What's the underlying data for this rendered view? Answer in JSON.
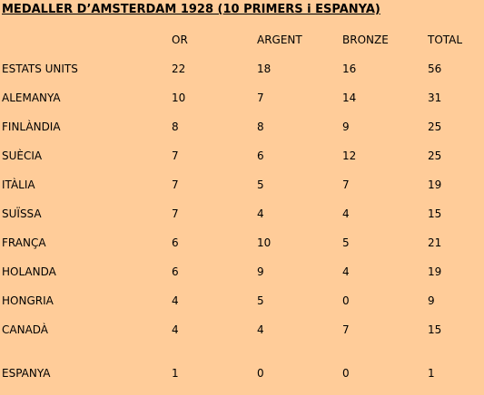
{
  "title": "MEDALLER D’AMSTERDAM 1928 (10 PRIMERS i ESPANYA)",
  "header": {
    "country": "",
    "gold": "OR",
    "silver": "ARGENT",
    "bronze": "BRONZE",
    "total": "TOTAL"
  },
  "rows": [
    {
      "country": "ESTATS UNITS",
      "gold": "22",
      "silver": "18",
      "bronze": "16",
      "total": "56"
    },
    {
      "country": "ALEMANYA",
      "gold": "10",
      "silver": "7",
      "bronze": "14",
      "total": "31"
    },
    {
      "country": "FINLÀNDIA",
      "gold": "8",
      "silver": "8",
      "bronze": "9",
      "total": "25"
    },
    {
      "country": "SUÈCIA",
      "gold": "7",
      "silver": "6",
      "bronze": "12",
      "total": "25"
    },
    {
      "country": "ITÀLIA",
      "gold": "7",
      "silver": "5",
      "bronze": "7",
      "total": "19"
    },
    {
      "country": "SUÏSSA",
      "gold": "7",
      "silver": "4",
      "bronze": "4",
      "total": "15"
    },
    {
      "country": "FRANÇA",
      "gold": "6",
      "silver": "10",
      "bronze": "5",
      "total": "21"
    },
    {
      "country": "HOLANDA",
      "gold": "6",
      "silver": "9",
      "bronze": "4",
      "total": "19"
    },
    {
      "country": "HONGRIA",
      "gold": "4",
      "silver": "5",
      "bronze": "0",
      "total": "9"
    },
    {
      "country": "CANADÀ",
      "gold": "4",
      "silver": "4",
      "bronze": "7",
      "total": "15"
    },
    {
      "country": "ESPANYA",
      "gold": "1",
      "silver": "0",
      "bronze": "0",
      "total": "1"
    }
  ]
}
